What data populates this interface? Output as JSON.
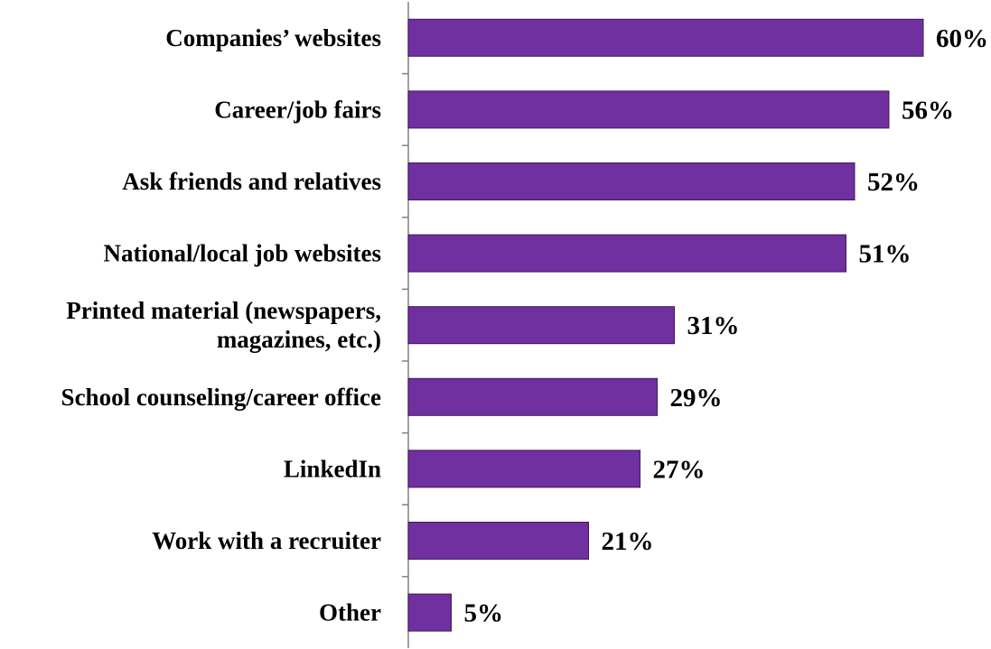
{
  "chart_data": {
    "type": "bar",
    "orientation": "horizontal",
    "categories": [
      [
        "Companies’ websites"
      ],
      [
        "Career/job fairs"
      ],
      [
        "Ask friends and relatives"
      ],
      [
        "National/local job websites"
      ],
      [
        "Printed material (newspapers,",
        "magazines, etc.)"
      ],
      [
        "School counseling/career office"
      ],
      [
        "LinkedIn"
      ],
      [
        "Work with a recruiter"
      ],
      [
        "Other"
      ]
    ],
    "values": [
      60,
      56,
      52,
      51,
      31,
      29,
      27,
      21,
      5
    ],
    "value_labels": [
      "60%",
      "56%",
      "52%",
      "51%",
      "31%",
      "29%",
      "27%",
      "21%",
      "5%"
    ],
    "xlim": [
      0,
      60
    ],
    "grid": false,
    "legend": "none",
    "bar_color": "#7030a0",
    "bar_edge_color": "#3d1a5c"
  }
}
